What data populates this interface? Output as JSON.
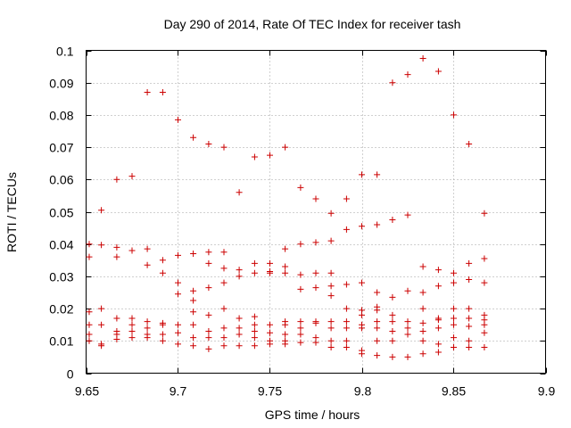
{
  "chart_data": {
    "type": "scatter",
    "title": "Day 290 of 2014, Rate Of TEC Index for receiver tash",
    "xlabel": "GPS time / hours",
    "ylabel": "ROTI / TECUs",
    "xlim": [
      9.65,
      9.9
    ],
    "ylim": [
      0,
      0.1
    ],
    "xticks": [
      "9.65",
      "9.7",
      "9.75",
      "9.8",
      "9.85",
      "9.9"
    ],
    "xtick_values": [
      9.65,
      9.7,
      9.75,
      9.8,
      9.85,
      9.9
    ],
    "yticks": [
      "0",
      "0.01",
      "0.02",
      "0.03",
      "0.04",
      "0.05",
      "0.06",
      "0.07",
      "0.08",
      "0.09",
      "0.1"
    ],
    "ytick_values": [
      0,
      0.01,
      0.02,
      0.03,
      0.04,
      0.05,
      0.06,
      0.07,
      0.08,
      0.09,
      0.1
    ],
    "grid": true,
    "marker": "+",
    "color": "#cc0000",
    "series": [
      {
        "name": "ROTI",
        "points": [
          [
            9.65,
            0.04
          ],
          [
            9.65,
            0.036
          ],
          [
            9.65,
            0.019
          ],
          [
            9.65,
            0.015
          ],
          [
            9.65,
            0.012
          ],
          [
            9.65,
            0.01
          ],
          [
            9.6583,
            0.0505
          ],
          [
            9.6583,
            0.0397
          ],
          [
            9.6583,
            0.02
          ],
          [
            9.6583,
            0.015
          ],
          [
            9.6583,
            0.009
          ],
          [
            9.6583,
            0.0085
          ],
          [
            9.6667,
            0.06
          ],
          [
            9.6667,
            0.039
          ],
          [
            9.6667,
            0.036
          ],
          [
            9.6667,
            0.017
          ],
          [
            9.6667,
            0.013
          ],
          [
            9.6667,
            0.012
          ],
          [
            9.6667,
            0.0105
          ],
          [
            9.675,
            0.061
          ],
          [
            9.675,
            0.038
          ],
          [
            9.675,
            0.017
          ],
          [
            9.675,
            0.015
          ],
          [
            9.675,
            0.013
          ],
          [
            9.675,
            0.011
          ],
          [
            9.6833,
            0.087
          ],
          [
            9.6833,
            0.0385
          ],
          [
            9.6833,
            0.0335
          ],
          [
            9.6833,
            0.016
          ],
          [
            9.6833,
            0.014
          ],
          [
            9.6833,
            0.012
          ],
          [
            9.6833,
            0.011
          ],
          [
            9.6917,
            0.087
          ],
          [
            9.6917,
            0.035
          ],
          [
            9.6917,
            0.031
          ],
          [
            9.6917,
            0.0155
          ],
          [
            9.6917,
            0.015
          ],
          [
            9.6917,
            0.012
          ],
          [
            9.6917,
            0.01
          ],
          [
            9.7,
            0.0785
          ],
          [
            9.7,
            0.0365
          ],
          [
            9.7,
            0.028
          ],
          [
            9.7,
            0.0245
          ],
          [
            9.7,
            0.015
          ],
          [
            9.7,
            0.0125
          ],
          [
            9.7,
            0.009
          ],
          [
            9.7083,
            0.073
          ],
          [
            9.7083,
            0.037
          ],
          [
            9.7083,
            0.0255
          ],
          [
            9.7083,
            0.0225
          ],
          [
            9.7083,
            0.019
          ],
          [
            9.7083,
            0.015
          ],
          [
            9.7083,
            0.011
          ],
          [
            9.7083,
            0.0085
          ],
          [
            9.7167,
            0.071
          ],
          [
            9.7167,
            0.0375
          ],
          [
            9.7167,
            0.034
          ],
          [
            9.7167,
            0.0265
          ],
          [
            9.7167,
            0.018
          ],
          [
            9.7167,
            0.013
          ],
          [
            9.7167,
            0.011
          ],
          [
            9.7167,
            0.0075
          ],
          [
            9.725,
            0.07
          ],
          [
            9.725,
            0.0375
          ],
          [
            9.725,
            0.0325
          ],
          [
            9.725,
            0.028
          ],
          [
            9.725,
            0.02
          ],
          [
            9.725,
            0.014
          ],
          [
            9.725,
            0.011
          ],
          [
            9.725,
            0.0085
          ],
          [
            9.7333,
            0.056
          ],
          [
            9.7333,
            0.032
          ],
          [
            9.7333,
            0.03
          ],
          [
            9.7333,
            0.017
          ],
          [
            9.7333,
            0.014
          ],
          [
            9.7333,
            0.012
          ],
          [
            9.7333,
            0.0085
          ],
          [
            9.7417,
            0.067
          ],
          [
            9.7417,
            0.034
          ],
          [
            9.7417,
            0.031
          ],
          [
            9.7417,
            0.0175
          ],
          [
            9.7417,
            0.015
          ],
          [
            9.7417,
            0.013
          ],
          [
            9.7417,
            0.011
          ],
          [
            9.7417,
            0.0085
          ],
          [
            9.75,
            0.0675
          ],
          [
            9.75,
            0.034
          ],
          [
            9.75,
            0.0315
          ],
          [
            9.75,
            0.031
          ],
          [
            9.75,
            0.015
          ],
          [
            9.75,
            0.0125
          ],
          [
            9.75,
            0.01
          ],
          [
            9.75,
            0.009
          ],
          [
            9.7583,
            0.07
          ],
          [
            9.7583,
            0.0385
          ],
          [
            9.7583,
            0.033
          ],
          [
            9.7583,
            0.031
          ],
          [
            9.7583,
            0.016
          ],
          [
            9.7583,
            0.015
          ],
          [
            9.7583,
            0.012
          ],
          [
            9.7583,
            0.01
          ],
          [
            9.7583,
            0.009
          ],
          [
            9.7667,
            0.0575
          ],
          [
            9.7667,
            0.04
          ],
          [
            9.7667,
            0.0305
          ],
          [
            9.7667,
            0.026
          ],
          [
            9.7667,
            0.016
          ],
          [
            9.7667,
            0.014
          ],
          [
            9.7667,
            0.012
          ],
          [
            9.7667,
            0.0095
          ],
          [
            9.775,
            0.054
          ],
          [
            9.775,
            0.0405
          ],
          [
            9.775,
            0.031
          ],
          [
            9.775,
            0.0265
          ],
          [
            9.775,
            0.016
          ],
          [
            9.775,
            0.0155
          ],
          [
            9.775,
            0.011
          ],
          [
            9.775,
            0.0095
          ],
          [
            9.7833,
            0.0495
          ],
          [
            9.7833,
            0.041
          ],
          [
            9.7833,
            0.031
          ],
          [
            9.7833,
            0.027
          ],
          [
            9.7833,
            0.024
          ],
          [
            9.7833,
            0.016
          ],
          [
            9.7833,
            0.014
          ],
          [
            9.7833,
            0.01
          ],
          [
            9.7833,
            0.008
          ],
          [
            9.7917,
            0.054
          ],
          [
            9.7917,
            0.0445
          ],
          [
            9.7917,
            0.0275
          ],
          [
            9.7917,
            0.02
          ],
          [
            9.7917,
            0.016
          ],
          [
            9.7917,
            0.014
          ],
          [
            9.7917,
            0.01
          ],
          [
            9.7917,
            0.008
          ],
          [
            9.8,
            0.0615
          ],
          [
            9.8,
            0.0455
          ],
          [
            9.8,
            0.028
          ],
          [
            9.8,
            0.0195
          ],
          [
            9.8,
            0.018
          ],
          [
            9.8,
            0.015
          ],
          [
            9.8,
            0.014
          ],
          [
            9.8,
            0.007
          ],
          [
            9.8,
            0.006
          ],
          [
            9.8083,
            0.0615
          ],
          [
            9.8083,
            0.046
          ],
          [
            9.8083,
            0.025
          ],
          [
            9.8083,
            0.0205
          ],
          [
            9.8083,
            0.0195
          ],
          [
            9.8083,
            0.016
          ],
          [
            9.8083,
            0.014
          ],
          [
            9.8083,
            0.01
          ],
          [
            9.8083,
            0.0055
          ],
          [
            9.8167,
            0.09
          ],
          [
            9.8167,
            0.0475
          ],
          [
            9.8167,
            0.0235
          ],
          [
            9.8167,
            0.018
          ],
          [
            9.8167,
            0.016
          ],
          [
            9.8167,
            0.013
          ],
          [
            9.8167,
            0.01
          ],
          [
            9.8167,
            0.005
          ],
          [
            9.825,
            0.0925
          ],
          [
            9.825,
            0.049
          ],
          [
            9.825,
            0.0255
          ],
          [
            9.825,
            0.016
          ],
          [
            9.825,
            0.014
          ],
          [
            9.825,
            0.012
          ],
          [
            9.825,
            0.005
          ],
          [
            9.8333,
            0.0975
          ],
          [
            9.8333,
            0.033
          ],
          [
            9.8333,
            0.025
          ],
          [
            9.8333,
            0.02
          ],
          [
            9.8333,
            0.0155
          ],
          [
            9.8333,
            0.013
          ],
          [
            9.8333,
            0.01
          ],
          [
            9.8333,
            0.006
          ],
          [
            9.8417,
            0.0935
          ],
          [
            9.8417,
            0.032
          ],
          [
            9.8417,
            0.027
          ],
          [
            9.8417,
            0.017
          ],
          [
            9.8417,
            0.0165
          ],
          [
            9.8417,
            0.014
          ],
          [
            9.8417,
            0.009
          ],
          [
            9.8417,
            0.0065
          ],
          [
            9.85,
            0.08
          ],
          [
            9.85,
            0.031
          ],
          [
            9.85,
            0.028
          ],
          [
            9.85,
            0.02
          ],
          [
            9.85,
            0.017
          ],
          [
            9.85,
            0.015
          ],
          [
            9.85,
            0.011
          ],
          [
            9.85,
            0.008
          ],
          [
            9.8583,
            0.071
          ],
          [
            9.8583,
            0.034
          ],
          [
            9.8583,
            0.029
          ],
          [
            9.8583,
            0.02
          ],
          [
            9.8583,
            0.017
          ],
          [
            9.8583,
            0.0145
          ],
          [
            9.8583,
            0.01
          ],
          [
            9.8583,
            0.008
          ],
          [
            9.8667,
            0.0495
          ],
          [
            9.8667,
            0.0355
          ],
          [
            9.8667,
            0.028
          ],
          [
            9.8667,
            0.018
          ],
          [
            9.8667,
            0.0165
          ],
          [
            9.8667,
            0.015
          ],
          [
            9.8667,
            0.0125
          ],
          [
            9.8667,
            0.008
          ]
        ]
      }
    ]
  }
}
